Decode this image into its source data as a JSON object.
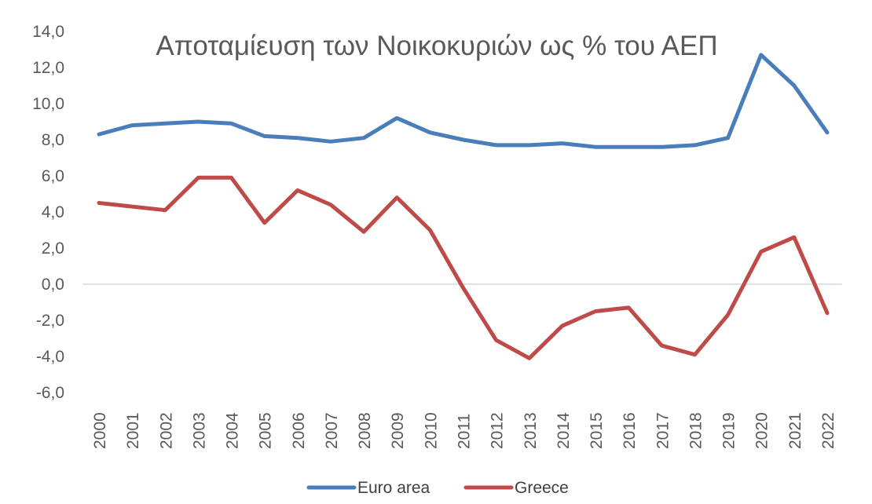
{
  "chart_data": {
    "type": "line",
    "title": "Αποταμίευση των Νοικοκυριών ως % του ΑΕΠ",
    "xlabel": "",
    "ylabel": "",
    "x": [
      "2000",
      "2001",
      "2002",
      "2003",
      "2004",
      "2005",
      "2006",
      "2007",
      "2008",
      "2009",
      "2010",
      "2011",
      "2012",
      "2013",
      "2014",
      "2015",
      "2016",
      "2017",
      "2018",
      "2019",
      "2020",
      "2021",
      "2022"
    ],
    "ylim": [
      -6,
      14
    ],
    "yticks": [
      "14,0",
      "12,0",
      "10,0",
      "8,0",
      "6,0",
      "4,0",
      "2,0",
      "0,0",
      "-2,0",
      "-4,0",
      "-6,0"
    ],
    "grid": false,
    "legend_position": "bottom",
    "series": [
      {
        "name": "Euro area",
        "color": "#4a7ebb",
        "values": [
          8.3,
          8.8,
          8.9,
          9.0,
          8.9,
          8.2,
          8.1,
          7.9,
          8.1,
          9.2,
          8.4,
          8.0,
          7.7,
          7.7,
          7.8,
          7.6,
          7.6,
          7.6,
          7.7,
          8.1,
          12.7,
          11.0,
          8.4
        ]
      },
      {
        "name": "Greece",
        "color": "#be4b48",
        "values": [
          4.5,
          4.3,
          4.1,
          5.9,
          5.9,
          3.4,
          5.2,
          4.4,
          2.9,
          4.8,
          3.0,
          -0.2,
          -3.1,
          -4.1,
          -2.3,
          -1.5,
          -1.3,
          -3.4,
          -3.9,
          -1.7,
          1.8,
          2.6,
          -1.6
        ]
      }
    ]
  }
}
